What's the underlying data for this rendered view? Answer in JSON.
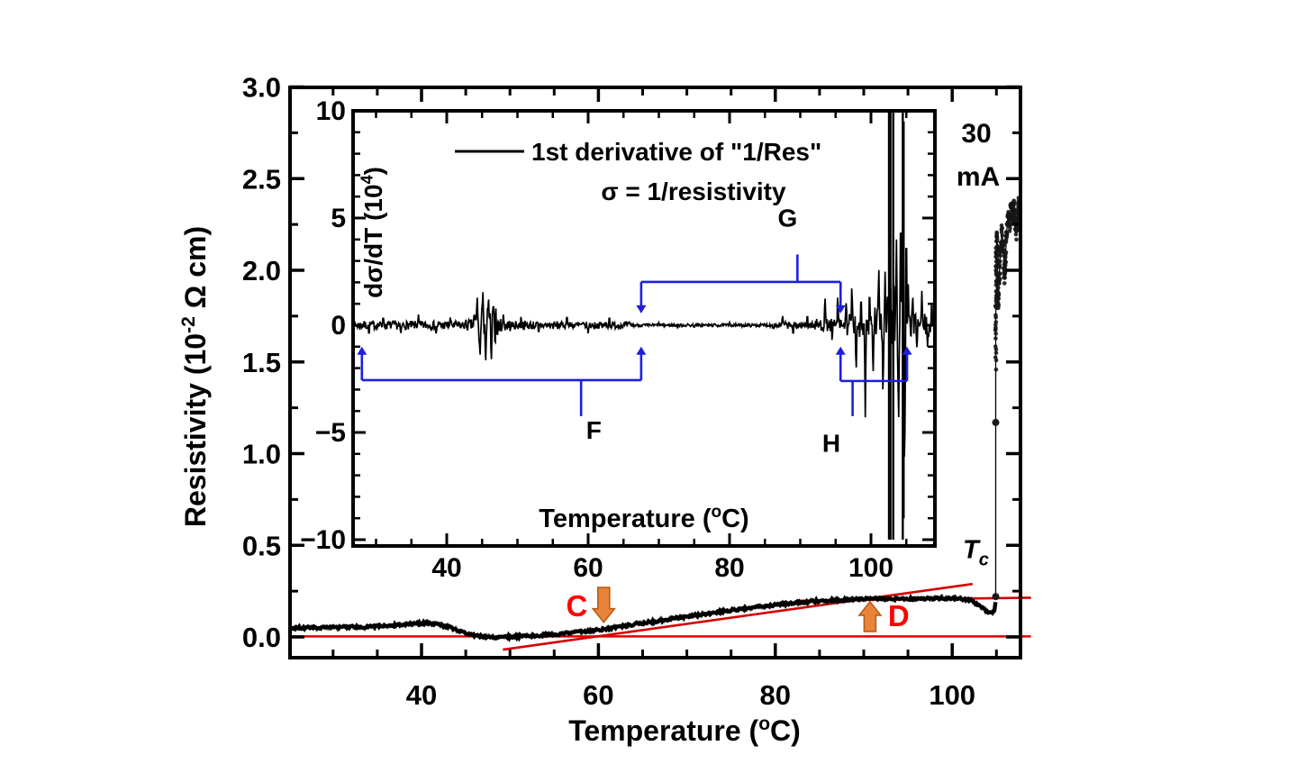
{
  "figure": {
    "background": "#ffffff",
    "colors": {
      "axis": "#000000",
      "data": "#000000",
      "fit_red": "#d40000",
      "zero_red": "#e00000",
      "label_red": "#ff0000",
      "arrow_fill": "#e8833a",
      "arrow_edge": "#b85c14",
      "bracket_blue": "#1e1ee0"
    },
    "current_label": {
      "line1": "30",
      "line2": "mA"
    }
  },
  "chart_data": {
    "main": {
      "type": "scatter",
      "title": "",
      "xlabel": {
        "pre": "Temperature (",
        "sup": "o",
        "post": "C)"
      },
      "ylabel": {
        "pre": "Resistivity (10",
        "sup": "-2",
        "post": " Ω cm)"
      },
      "x_range": [
        25.1,
        107.7
      ],
      "y_range": [
        -0.113,
        3.0
      ],
      "x_major_ticks": [
        {
          "v": 40,
          "label": "40"
        },
        {
          "v": 60,
          "label": "60"
        },
        {
          "v": 80,
          "label": "80"
        },
        {
          "v": 100,
          "label": "100"
        }
      ],
      "x_minor_ticks": [
        30,
        35,
        45,
        50,
        55,
        65,
        70,
        75,
        85,
        90,
        95,
        105
      ],
      "y_major_ticks": [
        {
          "v": 0.0,
          "label": "0.0"
        },
        {
          "v": 0.5,
          "label": "0.5"
        },
        {
          "v": 1.0,
          "label": "1.0"
        },
        {
          "v": 1.5,
          "label": "1.5"
        },
        {
          "v": 2.0,
          "label": "2.0"
        },
        {
          "v": 2.5,
          "label": "2.5"
        },
        {
          "v": 3.0,
          "label": "3.0"
        }
      ],
      "y_minor_ticks": [
        0.25,
        0.75,
        1.25,
        1.75,
        2.25,
        2.75
      ],
      "grid": false,
      "curve_anchors": [
        [
          25.1,
          0.048
        ],
        [
          27,
          0.05
        ],
        [
          30,
          0.052
        ],
        [
          33,
          0.055
        ],
        [
          36,
          0.06
        ],
        [
          38.5,
          0.068
        ],
        [
          40,
          0.075
        ],
        [
          41.5,
          0.072
        ],
        [
          43,
          0.055
        ],
        [
          45,
          0.02
        ],
        [
          46.5,
          0.003
        ],
        [
          48,
          -0.003
        ],
        [
          50,
          0.0
        ],
        [
          52,
          0.006
        ],
        [
          54,
          0.012
        ],
        [
          56,
          0.018
        ],
        [
          58,
          0.028
        ],
        [
          60,
          0.038
        ],
        [
          62,
          0.052
        ],
        [
          64,
          0.068
        ],
        [
          66,
          0.082
        ],
        [
          68,
          0.097
        ],
        [
          70,
          0.111
        ],
        [
          72,
          0.125
        ],
        [
          74,
          0.139
        ],
        [
          76,
          0.152
        ],
        [
          78,
          0.164
        ],
        [
          80,
          0.175
        ],
        [
          82,
          0.185
        ],
        [
          84,
          0.193
        ],
        [
          86,
          0.199
        ],
        [
          88,
          0.204
        ],
        [
          90,
          0.207
        ],
        [
          92,
          0.209
        ],
        [
          94,
          0.208
        ],
        [
          96,
          0.208
        ],
        [
          98,
          0.21
        ],
        [
          100,
          0.211
        ],
        [
          101.5,
          0.206
        ],
        [
          102.5,
          0.19
        ],
        [
          103.3,
          0.16
        ],
        [
          104,
          0.14
        ],
        [
          104.5,
          0.132
        ],
        [
          104.75,
          0.14
        ],
        [
          104.88,
          0.18
        ],
        [
          104.92,
          0.21
        ]
      ],
      "transition": {
        "T": 104.92,
        "rho_from": 0.21,
        "rho_to": 1.5,
        "marker_dots": [
          1.17,
          0.22
        ]
      },
      "cloud_path": [
        [
          104.95,
          1.5
        ],
        [
          104.9,
          1.7
        ],
        [
          105.0,
          1.9
        ],
        [
          104.95,
          2.05
        ],
        [
          105.05,
          2.2
        ],
        [
          105.15,
          2.1
        ],
        [
          105.1,
          1.9
        ],
        [
          105.2,
          1.8
        ],
        [
          105.3,
          1.95
        ],
        [
          105.45,
          2.1
        ],
        [
          105.6,
          2.2
        ],
        [
          105.8,
          2.15
        ],
        [
          105.9,
          1.95
        ],
        [
          106.0,
          2.05
        ],
        [
          106.15,
          2.2
        ],
        [
          106.3,
          2.3
        ],
        [
          106.5,
          2.25
        ],
        [
          106.65,
          2.35
        ],
        [
          106.8,
          2.3
        ],
        [
          106.95,
          2.37
        ],
        [
          107.1,
          2.3
        ],
        [
          107.25,
          2.2
        ],
        [
          107.4,
          2.3
        ],
        [
          107.55,
          2.35
        ],
        [
          107.7,
          2.3
        ]
      ],
      "zero_line": {
        "rho": 0.003,
        "t0_px_at_axis": true,
        "extend_T": 108.9
      },
      "fit_lines": [
        {
          "name": "steep-tangent",
          "p1": [
            49.2,
            -0.069
          ],
          "p2": [
            102.3,
            0.289
          ]
        },
        {
          "name": "plateau-tangent",
          "p1": [
            82.5,
            0.197
          ],
          "p2": [
            108.9,
            0.214
          ]
        }
      ],
      "annotations": {
        "C": {
          "label": "C",
          "arrow_T": 60.6,
          "arrow_top_rho": 0.27,
          "arrow_tip_rho": 0.08,
          "dir": "down"
        },
        "D": {
          "label": "D",
          "arrow_T": 90.7,
          "arrow_top_rho": 0.192,
          "arrow_tip_rho": 0.03,
          "dir": "up"
        },
        "Tc": {
          "main": "T",
          "sub": "c",
          "T": 101.2,
          "rho": 0.43
        }
      }
    },
    "inset": {
      "type": "line",
      "xlabel": {
        "pre": "Temperature (",
        "sup": "o",
        "post": "C)"
      },
      "ylabel": {
        "pre": "dσ/dT (10",
        "sup": "4",
        "post": ")"
      },
      "legend": [
        {
          "sample": "line",
          "text": "1st derivative of \"1/Res\""
        },
        {
          "sample": "none",
          "text": "σ = 1/resistivity"
        }
      ],
      "x_range": [
        26.8,
        109.0
      ],
      "y_range": [
        -10.2,
        10.1
      ],
      "x_major_ticks": [
        {
          "v": 40,
          "label": "40"
        },
        {
          "v": 60,
          "label": "60"
        },
        {
          "v": 80,
          "label": "80"
        },
        {
          "v": 100,
          "label": "100"
        }
      ],
      "x_minor_ticks": [
        30,
        35,
        45,
        50,
        55,
        65,
        70,
        75,
        85,
        90,
        95,
        105
      ],
      "y_major_ticks": [
        {
          "v": 10,
          "label": "10"
        },
        {
          "v": 5,
          "label": "5"
        },
        {
          "v": 0,
          "label": "0"
        },
        {
          "v": -5,
          "label": "−5"
        },
        {
          "v": -10,
          "label": "−10"
        }
      ],
      "y_minor_ticks": [
        -9,
        -8,
        -7,
        -6,
        -4,
        -3,
        -2,
        -1,
        1,
        2,
        3,
        4,
        6,
        7,
        8,
        9
      ],
      "grid": false,
      "noise_seed": 7,
      "noise_segments": [
        {
          "t0": 26.8,
          "t1": 42.5,
          "amp": 0.2
        },
        {
          "t0": 42.5,
          "t1": 43.8,
          "amp": 0.28
        },
        {
          "t0": 43.8,
          "t1": 47.2,
          "amp": 0.95
        },
        {
          "t0": 47.2,
          "t1": 49,
          "amp": 0.3
        },
        {
          "t0": 49,
          "t1": 56,
          "amp": 0.2
        },
        {
          "t0": 56,
          "t1": 66,
          "amp": 0.16
        },
        {
          "t0": 66,
          "t1": 86,
          "amp": 0.07
        },
        {
          "t0": 86,
          "t1": 92,
          "amp": 0.16
        },
        {
          "t0": 92,
          "t1": 96,
          "amp": 0.3
        },
        {
          "t0": 96,
          "t1": 100.5,
          "amp": 0.55
        },
        {
          "t0": 100.5,
          "t1": 102.3,
          "amp": 0.9
        },
        {
          "t0": 102.3,
          "t1": 105.4,
          "amp": 2.2
        },
        {
          "t0": 105.4,
          "t1": 109,
          "amp": 0.55
        }
      ],
      "spikes": [
        [
          29,
          -0.5
        ],
        [
          31,
          0.45
        ],
        [
          33.5,
          -0.42
        ],
        [
          36,
          0.5
        ],
        [
          38.5,
          -0.45
        ],
        [
          40.5,
          0.42
        ],
        [
          44.3,
          1.5
        ],
        [
          44.7,
          -1.6
        ],
        [
          45.1,
          1.8
        ],
        [
          45.5,
          -1.9
        ],
        [
          45.9,
          1.4
        ],
        [
          46.3,
          -1.85
        ],
        [
          46.6,
          1.2
        ],
        [
          48,
          0.5
        ],
        [
          50.5,
          0.45
        ],
        [
          53,
          -0.4
        ],
        [
          57,
          0.5
        ],
        [
          60,
          -0.38
        ],
        [
          63,
          0.45
        ],
        [
          70,
          0.12
        ],
        [
          75,
          -0.12
        ],
        [
          80,
          0.13
        ],
        [
          87.5,
          0.5
        ],
        [
          89,
          -0.5
        ],
        [
          91,
          0.55
        ],
        [
          93.5,
          1.45
        ],
        [
          94.5,
          -0.8
        ],
        [
          95.3,
          1.5
        ],
        [
          96.5,
          1.2
        ],
        [
          97.3,
          2.0
        ],
        [
          97.9,
          -2.3
        ],
        [
          98.6,
          1.5
        ],
        [
          99.2,
          -4.3
        ],
        [
          99.8,
          1.8
        ],
        [
          100.3,
          -2.5
        ],
        [
          101.1,
          3.0
        ],
        [
          101.7,
          -3.5
        ],
        [
          102.0,
          2.5
        ],
        [
          103.6,
          4
        ],
        [
          103.9,
          -5
        ],
        [
          104.2,
          6
        ],
        [
          104.55,
          8.5
        ],
        [
          104.75,
          -7.8
        ],
        [
          105.0,
          5
        ],
        [
          105.9,
          1.5
        ],
        [
          106.5,
          -1.2
        ],
        [
          107.2,
          1.6
        ],
        [
          108.0,
          -1.0
        ],
        [
          108.6,
          1.3
        ]
      ],
      "full_spikes": [
        [
          102.55,
          -10,
          10
        ],
        [
          102.75,
          -10,
          10
        ],
        [
          103.15,
          -10,
          10
        ],
        [
          104.5,
          -10,
          10
        ],
        [
          104.62,
          -9,
          9.5
        ]
      ],
      "brackets": [
        {
          "label": "F",
          "level": -2.56,
          "t0": 28.0,
          "t1": 67.5,
          "tip_dir": "up",
          "tip_v": -1.0,
          "stem_T": 59.0,
          "stem_v": -4.24,
          "label_T": 60.8,
          "label_v": -5.3
        },
        {
          "label": "G",
          "level": 2.02,
          "t0": 67.5,
          "t1": 95.7,
          "tip_dir": "down",
          "tip_v": 0.55,
          "stem_T": 89.6,
          "stem_v": 3.3,
          "label_T": 88.2,
          "label_v": 4.6
        },
        {
          "label": "H",
          "level": -2.6,
          "t0": 95.7,
          "t1": 105.1,
          "tip_dir": "up",
          "tip_v": -1.0,
          "stem_T": 97.4,
          "stem_v": -4.24,
          "label_T": 94.4,
          "label_v": -5.9
        }
      ]
    }
  }
}
